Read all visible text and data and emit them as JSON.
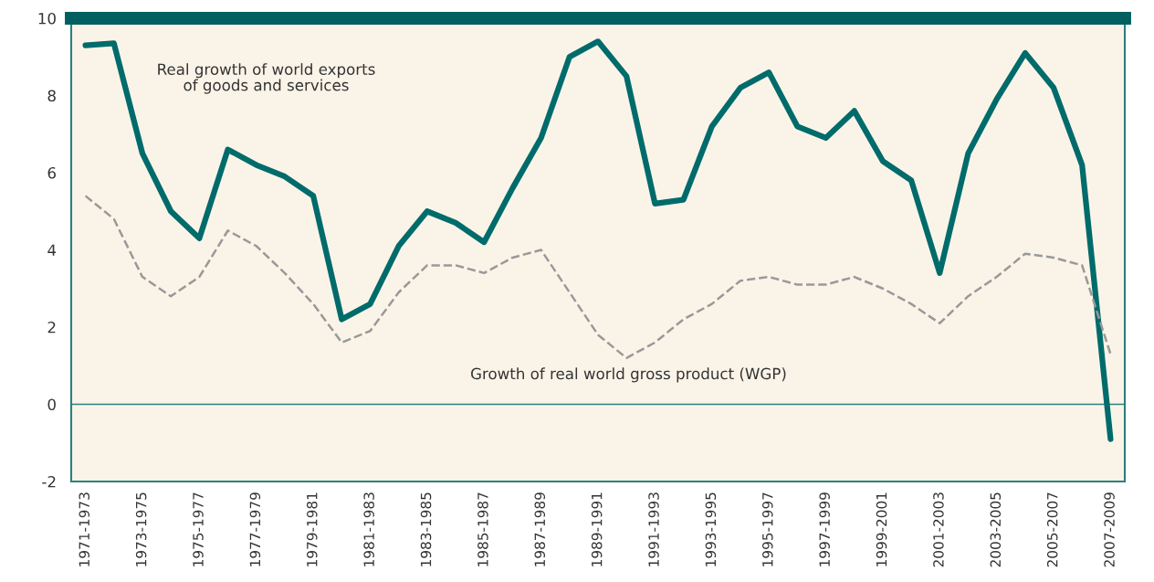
{
  "chart_data": {
    "type": "line",
    "categories": [
      "1971-1973",
      null,
      "1973-1975",
      null,
      "1975-1977",
      null,
      "1977-1979",
      null,
      "1979-1981",
      null,
      "1981-1983",
      null,
      "1983-1985",
      null,
      "1985-1987",
      null,
      "1987-1989",
      null,
      "1989-1991",
      null,
      "1991-1993",
      null,
      "1993-1995",
      null,
      "1995-1997",
      null,
      "1997-1999",
      null,
      "1999-2001",
      null,
      "2001-2003",
      null,
      "2003-2005",
      null,
      "2005-2007",
      null,
      "2007-2009"
    ],
    "series": [
      {
        "name": "Real growth of world exports\nof goods and services",
        "color": "#006b6b",
        "line_style": "solid",
        "values": [
          9.3,
          9.35,
          6.5,
          5.0,
          4.3,
          6.6,
          6.2,
          5.9,
          5.4,
          2.2,
          2.6,
          4.1,
          5.0,
          4.7,
          4.2,
          5.6,
          6.9,
          9.0,
          9.4,
          8.5,
          5.2,
          5.3,
          7.2,
          8.2,
          8.6,
          7.2,
          6.9,
          7.6,
          6.3,
          5.8,
          3.4,
          6.5,
          7.9,
          9.1,
          8.2,
          6.2,
          -0.9
        ]
      },
      {
        "name": "Growth of real world gross product (WGP)",
        "color": "#999999",
        "line_style": "dashed",
        "values": [
          5.4,
          4.8,
          3.3,
          2.8,
          3.3,
          4.5,
          4.1,
          3.4,
          2.6,
          1.6,
          1.9,
          2.9,
          3.6,
          3.6,
          3.4,
          3.8,
          4.0,
          2.9,
          1.8,
          1.2,
          1.6,
          2.2,
          2.6,
          3.2,
          3.3,
          3.1,
          3.1,
          3.3,
          3.0,
          2.6,
          2.1,
          2.8,
          3.3,
          3.9,
          3.8,
          3.6,
          1.3
        ]
      }
    ],
    "ylim": [
      -2,
      10
    ],
    "yticks": [
      -2,
      0,
      2,
      4,
      6,
      8,
      10
    ],
    "ref_lines": [
      {
        "axis": "y",
        "value": 0,
        "color": "#2a8080"
      }
    ],
    "grid": false,
    "legend": false,
    "marker": "none"
  }
}
